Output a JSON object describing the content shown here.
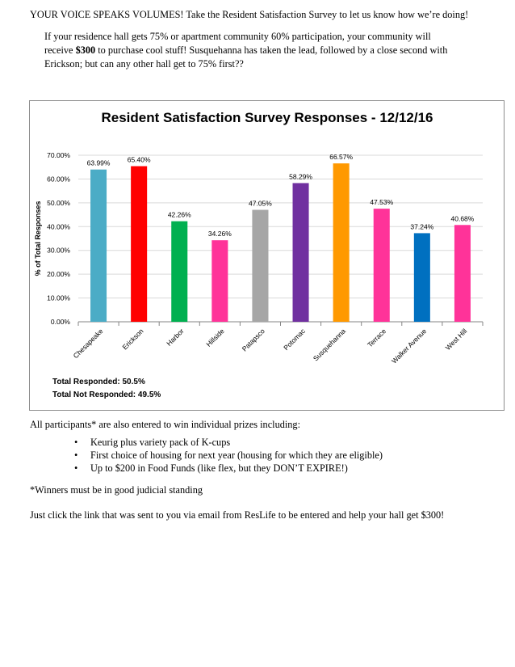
{
  "intro": {
    "headline": "YOUR VOICE SPEAKS VOLUMES!  Take the Resident Satisfaction Survey to let us know how we’re doing!",
    "para_line1": "If your residence hall gets 75% or apartment community 60% participation, your community will",
    "para_line2_pre": "receive ",
    "para_line2_bold": "$300",
    "para_line2_post": " to purchase cool stuff! Susquehanna has taken the lead, followed by a close second with",
    "para_line3": "Erickson; but can any other hall get to 75% first??"
  },
  "chart_data": {
    "type": "bar",
    "title": "Resident Satisfaction Survey Responses - 12/12/16",
    "xlabel": "",
    "ylabel": "% of Total Responses",
    "ylim": [
      0,
      70
    ],
    "yticks": [
      "0.00%",
      "10.00%",
      "20.00%",
      "30.00%",
      "40.00%",
      "50.00%",
      "60.00%",
      "70.00%"
    ],
    "grid": true,
    "categories": [
      "Chesapeake",
      "Erickson",
      "Harbor",
      "Hillside",
      "Patapsco",
      "Potomac",
      "Susquehanna",
      "Terrace",
      "Walker Avenue",
      "West Hill"
    ],
    "values": [
      63.99,
      65.4,
      42.26,
      34.26,
      47.05,
      58.29,
      66.57,
      47.53,
      37.24,
      40.68
    ],
    "labels": [
      "63.99%",
      "65.40%",
      "42.26%",
      "34.26%",
      "47.05%",
      "58.29%",
      "66.57%",
      "47.53%",
      "37.24%",
      "40.68%"
    ],
    "colors": [
      "#4bacc6",
      "#ff0000",
      "#00b050",
      "#ff3399",
      "#a6a6a6",
      "#7030a0",
      "#ff9900",
      "#ff3399",
      "#0070c0",
      "#ff3399"
    ],
    "annotations": [
      "Total Responded: 50.5%",
      "Total Not Responded: 49.5%"
    ]
  },
  "prizes": {
    "intro": "All participants* are also entered to win individual prizes including:",
    "items": [
      "Keurig plus variety pack of K-cups",
      "First choice of housing for next year (housing for which they are eligible)",
      "Up to $200 in Food Funds (like flex, but they DON’T EXPIRE!)"
    ],
    "bullet_symbol": "•"
  },
  "footnote": "*Winners must be in good judicial standing",
  "closing": "Just click the link that was sent to you via email from ResLife to be entered and help your hall get $300!"
}
